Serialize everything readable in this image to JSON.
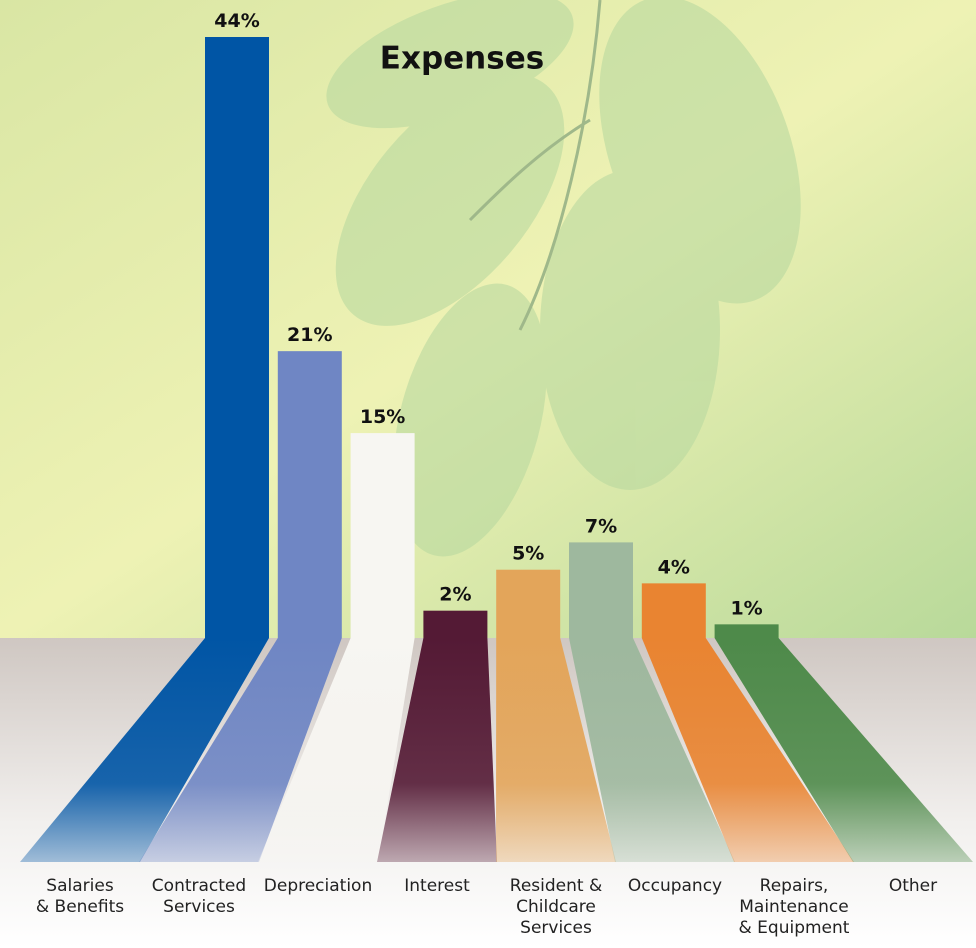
{
  "chart_data": {
    "type": "bar",
    "title": "Expenses",
    "categories": [
      "Salaries\n& Benefits",
      "Contracted\nServices",
      "Depreciation",
      "Interest",
      "Resident &\nChildcare\nServices",
      "Occupancy",
      "Repairs,\nMaintenance\n& Equipment",
      "Other"
    ],
    "values": [
      44,
      21,
      15,
      2,
      5,
      7,
      4,
      1
    ],
    "value_labels": [
      "44%",
      "21%",
      "15%",
      "2%",
      "5%",
      "7%",
      "4%",
      "1%"
    ],
    "colors": [
      "#0055a5",
      "#6f86c4",
      "#f7f6f2",
      "#541a35",
      "#e3a55a",
      "#9eb89e",
      "#e98431",
      "#4e8a4a"
    ],
    "ylim": [
      0,
      44
    ]
  }
}
